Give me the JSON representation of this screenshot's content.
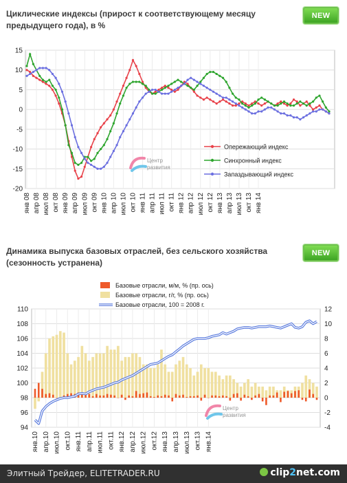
{
  "panel1": {
    "title": "Циклические индексы (прирост к соответствующему месяцу предыдущего года), в %",
    "badge": "NEW",
    "watermark": [
      "Центр",
      "развития"
    ]
  },
  "panel2": {
    "title": "Динамика выпуска базовых отраслей, без сельского хозяйства (сезонность устранена)",
    "badge": "NEW",
    "watermark": [
      "Центр",
      "развития"
    ]
  },
  "footer": {
    "text": "Элитный Трейдер, ELITETRADER.RU",
    "logo_main": "clip",
    "logo_two": "2",
    "logo_rest": "net.com"
  },
  "colors": {
    "leading": "#e8424a",
    "synchronous": "#2ea52e",
    "lagging": "#6b6fe0",
    "mm_bar": "#ee5a2a",
    "yy_bar": "#f0e0a0",
    "index_line": "#5577dd"
  },
  "chart_data": [
    {
      "type": "line",
      "title": "Циклические индексы (прирост к соответствующему месяцу предыдущего года), в %",
      "ylim": [
        -20,
        15
      ],
      "yticks": [
        -20,
        -15,
        -10,
        -5,
        0,
        5,
        10,
        15
      ],
      "grid": true,
      "legend_position": "bottom-right",
      "x_tick_labels": [
        "янв 08",
        "апр 08",
        "июл 08",
        "окт 08",
        "янв 09",
        "апр 09",
        "июл 09",
        "окт 09",
        "янв 10",
        "апр 10",
        "июл 10",
        "окт 10",
        "янв 11",
        "апр 11",
        "июл 11",
        "окт 11",
        "янв 12",
        "апр 12",
        "июл 12",
        "окт 12",
        "янв 13",
        "апр 13",
        "июл 13",
        "окт 13",
        "янв 14"
      ],
      "x_start": "2008-01",
      "series": [
        {
          "name": "Опережающий индекс",
          "color_key": "leading",
          "values": [
            10.0,
            9.5,
            8.5,
            8.0,
            7.5,
            7.0,
            6.5,
            6.0,
            5.0,
            3.5,
            1.5,
            -1.0,
            -4.0,
            -8.0,
            -12.0,
            -15.5,
            -17.5,
            -17.0,
            -14.5,
            -12.0,
            -9.5,
            -7.5,
            -6.0,
            -4.5,
            -3.5,
            -2.5,
            -1.5,
            0.0,
            2.0,
            4.0,
            6.0,
            8.0,
            10.0,
            12.5,
            11.0,
            9.0,
            7.0,
            5.5,
            4.5,
            4.0,
            4.5,
            5.0,
            5.5,
            6.0,
            5.5,
            5.0,
            4.5,
            5.0,
            6.0,
            7.0,
            6.5,
            5.5,
            4.5,
            3.5,
            3.0,
            2.5,
            3.0,
            2.5,
            2.0,
            1.5,
            2.0,
            2.5,
            2.0,
            1.5,
            1.0,
            1.0,
            1.5,
            2.0,
            1.5,
            1.0,
            1.5,
            2.0,
            1.5,
            1.0,
            1.5,
            2.0,
            1.5,
            1.0,
            1.5,
            2.0,
            1.5,
            1.0,
            1.5,
            2.5,
            2.0,
            1.0,
            1.5,
            2.0,
            1.0,
            0.0,
            0.5,
            1.0,
            0.0,
            -0.5,
            -1.0
          ]
        },
        {
          "name": "Синхронный индекс",
          "color_key": "synchronous",
          "values": [
            11.0,
            14.0,
            11.5,
            10.0,
            8.5,
            7.5,
            7.0,
            7.5,
            6.0,
            5.0,
            3.0,
            0.0,
            -4.0,
            -9.0,
            -11.0,
            -13.5,
            -14.0,
            -13.5,
            -12.0,
            -12.0,
            -13.0,
            -12.5,
            -11.0,
            -10.0,
            -9.0,
            -7.5,
            -5.5,
            -3.5,
            -1.0,
            1.5,
            3.5,
            5.5,
            6.5,
            7.0,
            7.0,
            7.0,
            6.5,
            6.0,
            5.0,
            4.0,
            4.0,
            4.5,
            5.0,
            5.5,
            6.0,
            6.5,
            7.0,
            7.5,
            7.0,
            6.5,
            6.0,
            5.5,
            5.0,
            6.0,
            7.0,
            8.0,
            9.0,
            9.5,
            9.5,
            9.0,
            8.5,
            8.0,
            7.0,
            5.5,
            4.0,
            3.0,
            2.5,
            1.5,
            1.0,
            0.5,
            1.0,
            1.5,
            2.5,
            3.0,
            2.5,
            2.0,
            1.5,
            1.0,
            1.0,
            1.5,
            2.0,
            1.5,
            1.0,
            1.0,
            1.5,
            2.0,
            1.5,
            1.0,
            1.5,
            2.0,
            3.0,
            3.5,
            2.0,
            0.5,
            -0.5
          ]
        },
        {
          "name": "Запаздывающий индекс",
          "color_key": "lagging",
          "values": [
            8.5,
            9.0,
            9.5,
            10.0,
            10.5,
            10.5,
            10.5,
            10.0,
            9.0,
            8.0,
            6.5,
            4.5,
            2.0,
            -1.0,
            -4.0,
            -7.0,
            -9.5,
            -11.0,
            -12.5,
            -13.5,
            -14.0,
            -14.5,
            -15.0,
            -15.0,
            -14.5,
            -13.5,
            -12.0,
            -10.5,
            -9.0,
            -7.0,
            -5.5,
            -4.0,
            -2.5,
            -1.0,
            0.5,
            2.0,
            3.0,
            4.0,
            4.5,
            5.0,
            5.0,
            4.5,
            4.0,
            4.0,
            4.0,
            4.5,
            5.0,
            5.5,
            6.0,
            6.5,
            7.5,
            8.0,
            7.5,
            7.0,
            6.5,
            6.0,
            5.5,
            5.0,
            4.5,
            4.0,
            3.5,
            3.0,
            3.0,
            2.5,
            2.0,
            1.5,
            1.0,
            0.5,
            0.0,
            -0.5,
            -1.0,
            -1.0,
            -0.5,
            -0.5,
            0.0,
            0.5,
            0.5,
            0.0,
            -0.5,
            -1.0,
            -1.0,
            -1.5,
            -1.5,
            -2.0,
            -2.0,
            -2.5,
            -2.0,
            -1.5,
            -1.0,
            -0.5,
            -0.5,
            0.0,
            0.0,
            -0.5,
            -1.0
          ]
        }
      ]
    },
    {
      "type": "bar",
      "title": "Динамика выпуска базовых отраслей, без сельского хозяйства (сезонность устранена)",
      "ylim": [
        94,
        110
      ],
      "yticks": [
        94,
        96,
        98,
        100,
        102,
        104,
        106,
        108,
        110
      ],
      "y2lim": [
        -4,
        12
      ],
      "y2ticks": [
        -4,
        -2,
        0,
        2,
        4,
        6,
        8,
        10,
        12
      ],
      "grid": true,
      "legend_position": "top",
      "x_tick_labels": [
        "янв.10",
        "апр.10",
        "июл.10",
        "окт.10",
        "янв.11",
        "апр.11",
        "июл.11",
        "окт.11",
        "янв.12",
        "апр.12",
        "июл.12",
        "окт.12",
        "янв.13",
        "апр.13",
        "июл.13",
        "окт.13",
        "янв.14"
      ],
      "x_start": "2010-01",
      "series": [
        {
          "name": "Базовые отрасли, м/м, %   (пр. ось)",
          "kind": "bar",
          "color_key": "mm_bar",
          "values": [
            1.2,
            2.0,
            1.2,
            0.5,
            0.6,
            0.4,
            0.0,
            0.0,
            0.3,
            0.5,
            0.6,
            0.5,
            0.7,
            0.4,
            0.5,
            0.5,
            0.2,
            0.5,
            0.3,
            0.3,
            0.5,
            0.4,
            0.3,
            0.0,
            0.4,
            -0.3,
            0.3,
            0.2,
            0.9,
            0.5,
            0.6,
            0.7,
            0.2,
            0.1,
            0.3,
            0.2,
            0.4,
            0.3,
            -0.5,
            0.5,
            0.3,
            0.4,
            0.1,
            0.2,
            0.2,
            0.3,
            -0.4,
            0.4,
            0.0,
            0.3,
            0.3,
            0.2,
            0.3,
            0.2,
            -0.4,
            0.5,
            0.6,
            -0.4,
            0.4,
            0.2,
            -0.3,
            0.3,
            0.5,
            -0.5,
            -1.0,
            0.3,
            0.3,
            0.7,
            -0.6,
            0.8,
            0.9,
            0.6,
            0.9,
            1.0,
            -0.3,
            -0.5,
            1.1,
            0.5,
            -0.3
          ]
        },
        {
          "name": "Базовые отрасли, г/г, %   (пр. ось)",
          "kind": "bar",
          "color_key": "yy_bar",
          "values": [
            -1.5,
            -0.5,
            3.5,
            6.0,
            8.0,
            8.3,
            8.5,
            9.0,
            8.8,
            6.0,
            4.5,
            5.0,
            5.5,
            7.0,
            6.0,
            5.0,
            5.5,
            6.0,
            6.0,
            6.0,
            7.0,
            6.5,
            6.5,
            7.0,
            5.0,
            5.5,
            5.5,
            6.0,
            6.0,
            5.5,
            4.5,
            4.5,
            4.0,
            4.0,
            4.5,
            6.5,
            4.5,
            3.5,
            3.5,
            4.5,
            5.0,
            5.5,
            4.5,
            4.0,
            3.0,
            3.5,
            4.5,
            4.0,
            4.0,
            3.5,
            3.5,
            3.0,
            2.5,
            3.0,
            3.0,
            2.5,
            2.0,
            1.5,
            2.0,
            2.5,
            1.5,
            2.0,
            1.5,
            1.5,
            1.0,
            1.5,
            1.5,
            1.0,
            1.0,
            1.5,
            1.0,
            1.0,
            1.5,
            1.5,
            2.0,
            3.0,
            2.5,
            2.0,
            1.5
          ]
        },
        {
          "name": "Базовые отрасли, 100 = 2008 г.",
          "kind": "line",
          "axis": "left",
          "color_key": "index_line",
          "values": [
            95.0,
            94.5,
            96.2,
            96.8,
            97.2,
            97.5,
            97.7,
            97.9,
            98.0,
            98.0,
            98.1,
            98.2,
            98.5,
            98.6,
            98.5,
            98.8,
            99.0,
            99.2,
            99.3,
            99.4,
            99.6,
            99.8,
            100.0,
            100.1,
            100.4,
            100.6,
            100.8,
            101.0,
            101.3,
            101.6,
            101.9,
            102.2,
            102.5,
            102.6,
            102.7,
            103.0,
            103.3,
            103.6,
            103.8,
            104.2,
            104.6,
            105.0,
            105.3,
            105.6,
            105.9,
            106.0,
            106.0,
            106.0,
            106.1,
            106.3,
            106.4,
            106.5,
            106.8,
            106.6,
            106.8,
            107.0,
            107.3,
            107.4,
            107.5,
            107.5,
            107.4,
            107.5,
            107.6,
            107.6,
            107.6,
            107.7,
            107.6,
            107.5,
            107.4,
            107.6,
            107.8,
            108.0,
            107.5,
            107.4,
            107.6,
            108.2,
            108.4,
            108.0,
            108.3
          ]
        }
      ]
    }
  ]
}
